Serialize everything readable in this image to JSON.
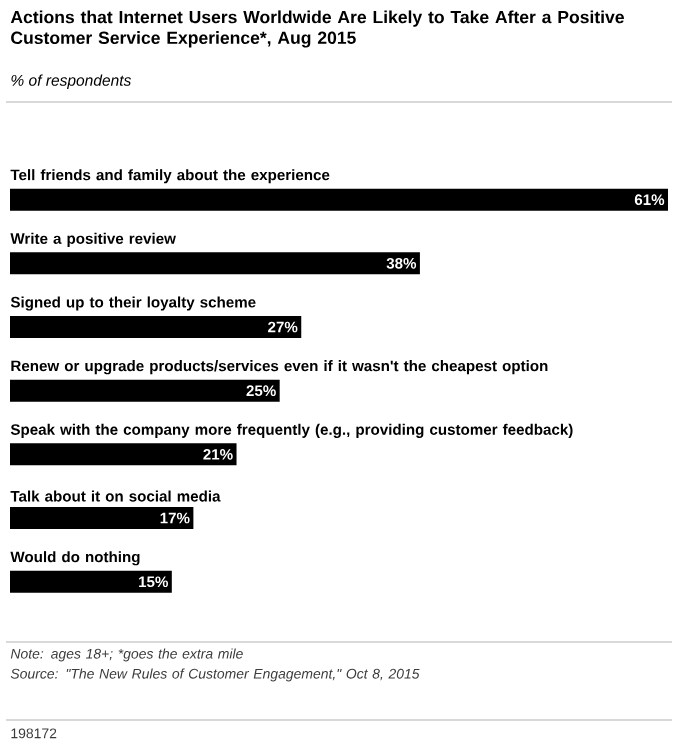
{
  "chart_data": {
    "type": "bar",
    "orientation": "horizontal",
    "title": "Actions that Internet Users Worldwide Are Likely to Take After a Positive Customer Service Experience*, Aug 2015",
    "subtitle": "% of respondents",
    "categories": [
      "Tell friends and family about the experience",
      "Write a positive review",
      "Signed up to their loyalty scheme",
      "Renew or upgrade products/services even if it wasn't the cheapest option",
      "Speak with the company more frequently (e.g., providing customer feedback)",
      "Talk about it on social media",
      "Would do nothing"
    ],
    "values": [
      61,
      38,
      27,
      25,
      21,
      17,
      15
    ],
    "value_labels": [
      "61%",
      "38%",
      "27%",
      "25%",
      "21%",
      "17%",
      "15%"
    ],
    "color": "#000000",
    "annotations": [
      "Note: ages 18+; *goes the extra mile",
      "Source: \"The New Rules of Customer Engagement,\" Oct 8, 2015",
      "198172"
    ]
  }
}
